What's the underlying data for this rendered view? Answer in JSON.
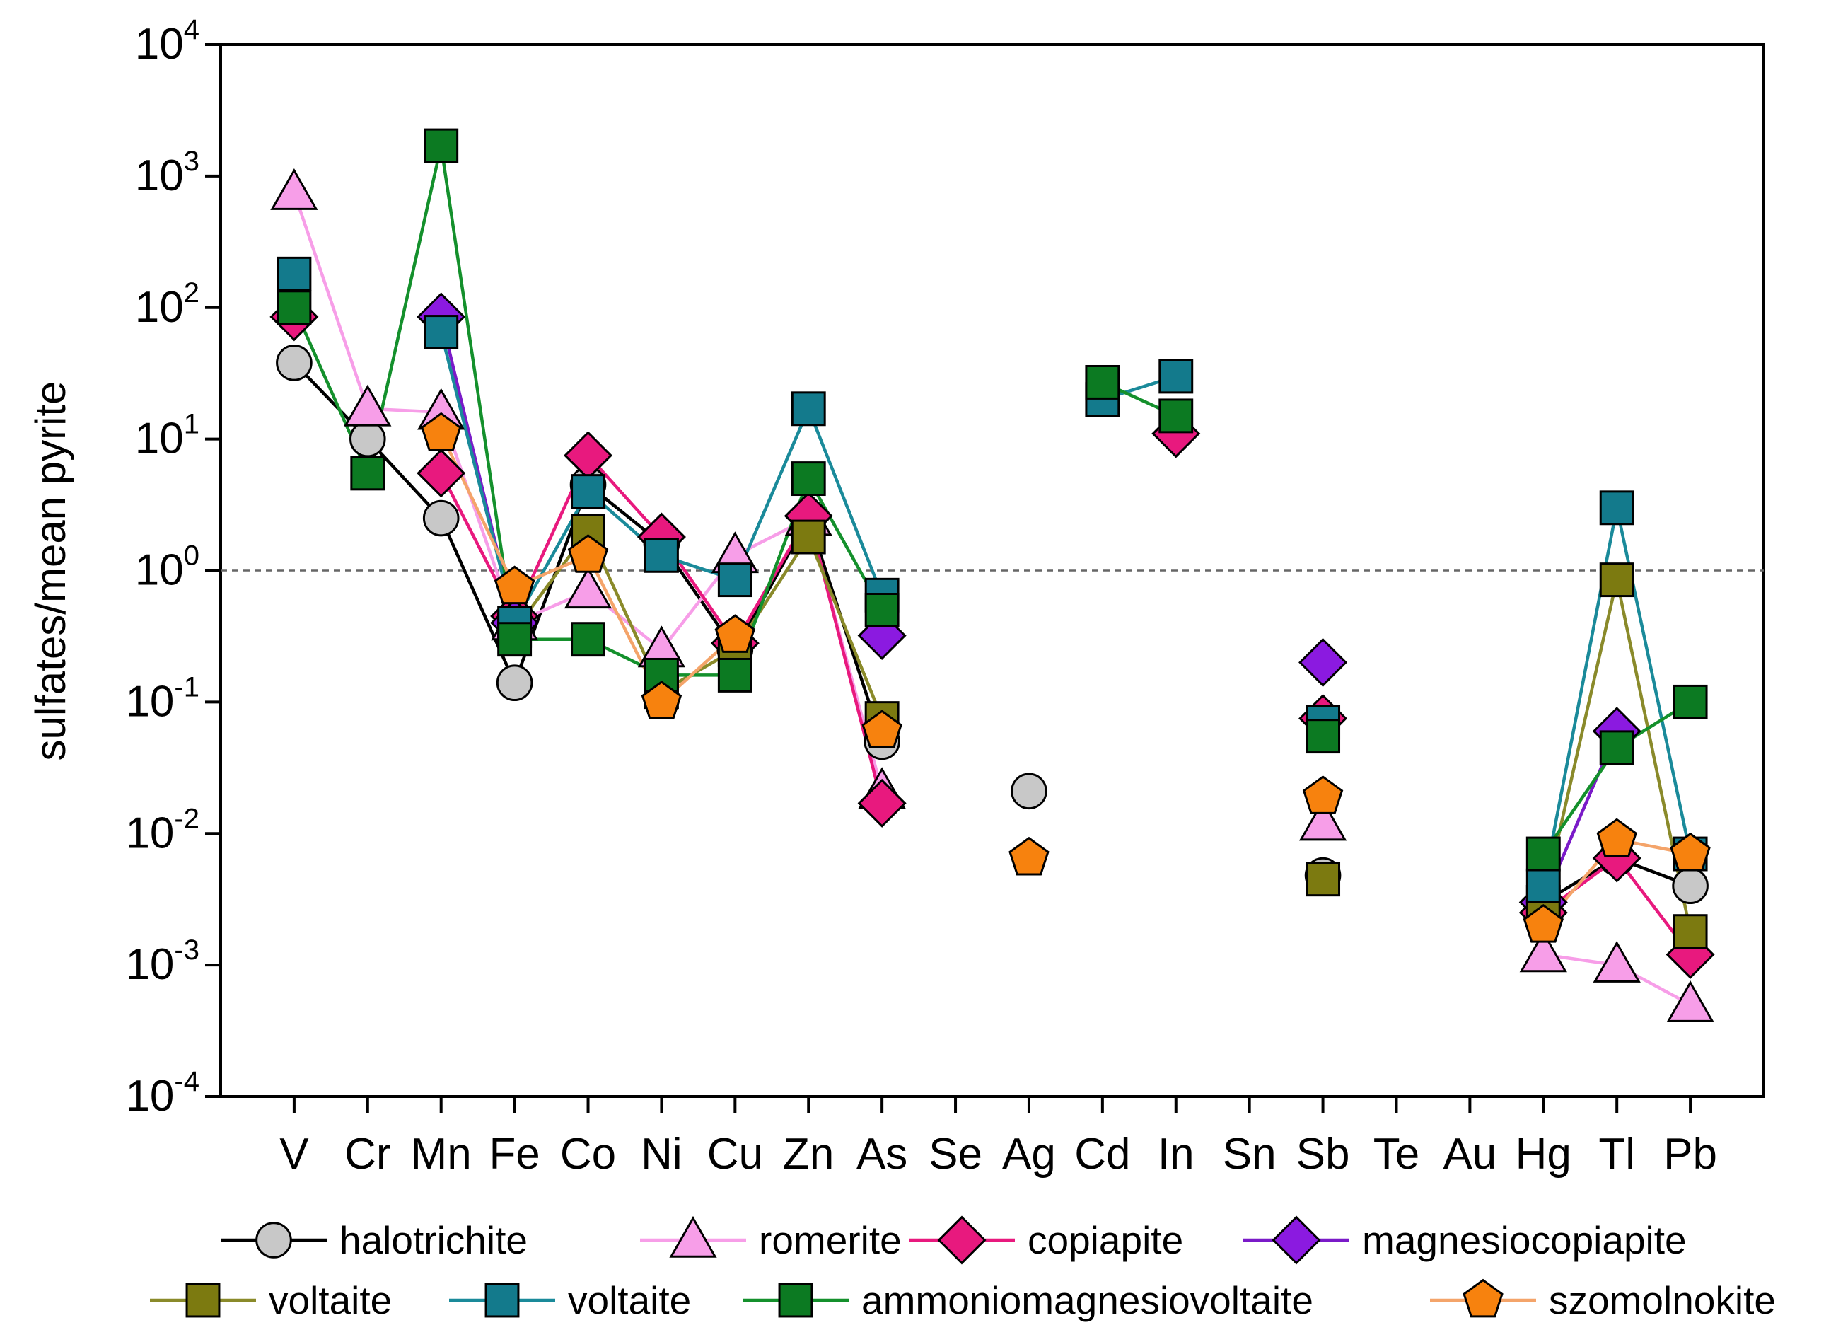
{
  "chart_data": {
    "type": "line",
    "ylabel": "sulfates/mean pyrite",
    "yscale": "log",
    "ylim": [
      0.0001,
      10000
    ],
    "y_ticks": [
      {
        "value": 0.0001,
        "base": "10",
        "exp": "-4"
      },
      {
        "value": 0.001,
        "base": "10",
        "exp": "-3"
      },
      {
        "value": 0.01,
        "base": "10",
        "exp": "-2"
      },
      {
        "value": 0.1,
        "base": "10",
        "exp": "-1"
      },
      {
        "value": 1,
        "base": "10",
        "exp": "0"
      },
      {
        "value": 10,
        "base": "10",
        "exp": "1"
      },
      {
        "value": 100,
        "base": "10",
        "exp": "2"
      },
      {
        "value": 1000,
        "base": "10",
        "exp": "3"
      },
      {
        "value": 10000,
        "base": "10",
        "exp": "4"
      }
    ],
    "reference_line": {
      "y": 1,
      "style": "dashed"
    },
    "categories": [
      "V",
      "Cr",
      "Mn",
      "Fe",
      "Co",
      "Ni",
      "Cu",
      "Zn",
      "As",
      "Se",
      "Ag",
      "Cd",
      "In",
      "Sn",
      "Sb",
      "Te",
      "Au",
      "Hg",
      "Tl",
      "Pb"
    ],
    "legend_position": "bottom",
    "series": [
      {
        "name": "halotrichite",
        "marker": "circle",
        "fill": "#c8c8c8",
        "line": "#000000",
        "values": [
          38,
          10,
          2.5,
          0.14,
          4.5,
          1.6,
          0.25,
          2.5,
          0.05,
          null,
          0.021,
          null,
          null,
          null,
          0.0048,
          null,
          null,
          0.003,
          0.0065,
          0.004
        ]
      },
      {
        "name": "romerite",
        "marker": "triangle",
        "fill": "#f79ee8",
        "line": "#f79ee8",
        "values": [
          750,
          17,
          16,
          0.4,
          0.7,
          0.25,
          1.3,
          2.5,
          0.021,
          null,
          null,
          null,
          null,
          null,
          0.012,
          null,
          null,
          0.0012,
          0.001,
          0.0005
        ]
      },
      {
        "name": "copiapite",
        "marker": "diamond",
        "fill": "#e8197e",
        "line": "#e8197e",
        "values": [
          85,
          null,
          5.5,
          0.45,
          7.5,
          1.8,
          0.28,
          2.6,
          0.017,
          null,
          null,
          null,
          11,
          null,
          0.075,
          null,
          null,
          0.0025,
          0.0065,
          0.0012
        ]
      },
      {
        "name": "magnesiocopiapite",
        "marker": "diamond",
        "fill": "#8b1ae0",
        "line": "#7a1ac8",
        "values": [
          null,
          null,
          85,
          0.4,
          null,
          null,
          null,
          null,
          0.32,
          null,
          null,
          null,
          null,
          null,
          0.2,
          null,
          null,
          0.003,
          0.06,
          null
        ]
      },
      {
        "name": "voltaite",
        "marker": "square",
        "fill": "#7c7a10",
        "line": "#8a8a2a",
        "values": [
          null,
          null,
          null,
          0.35,
          2,
          0.12,
          0.25,
          1.8,
          0.075,
          null,
          null,
          null,
          null,
          null,
          0.0045,
          null,
          null,
          0.003,
          0.85,
          0.0018
        ]
      },
      {
        "name": "voltaite",
        "marker": "square",
        "fill": "#137a8c",
        "line": "#1a8a9a",
        "values": [
          180,
          null,
          65,
          0.4,
          4,
          1.3,
          0.85,
          17,
          0.65,
          null,
          null,
          20,
          30,
          null,
          0.07,
          null,
          null,
          0.004,
          3,
          0.007
        ]
      },
      {
        "name": "ammoniomagnesiovoltaite",
        "marker": "square",
        "fill": "#0c7a22",
        "line": "#14902c",
        "values": [
          100,
          5.5,
          1700,
          0.3,
          0.3,
          0.16,
          0.16,
          5,
          0.5,
          null,
          null,
          27,
          15,
          null,
          0.055,
          null,
          null,
          0.007,
          0.045,
          0.1
        ]
      },
      {
        "name": "szomolnokite",
        "marker": "pentagon",
        "fill": "#f7820e",
        "line": "#f4a46a",
        "values": [
          null,
          null,
          11,
          0.75,
          1.3,
          0.1,
          0.32,
          null,
          0.06,
          null,
          0.0065,
          null,
          null,
          null,
          0.019,
          null,
          null,
          0.002,
          0.009,
          0.007
        ]
      }
    ]
  }
}
